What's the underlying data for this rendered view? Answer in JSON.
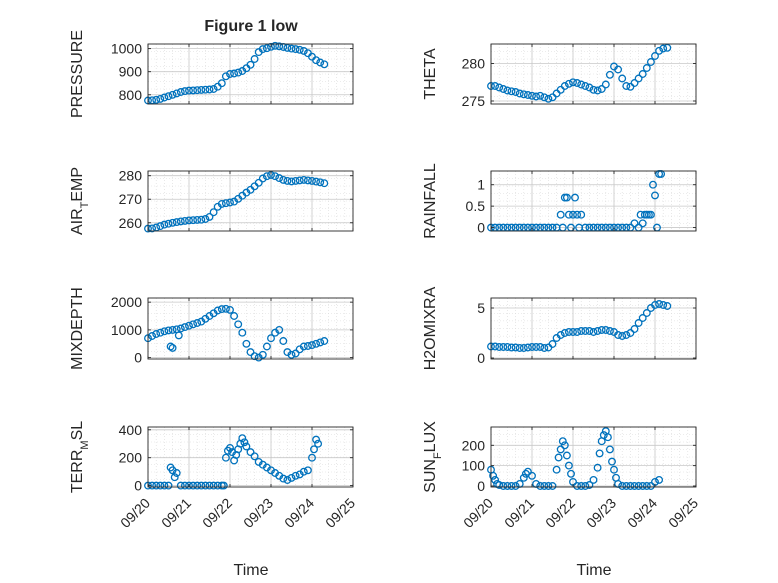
{
  "figure": {
    "title": "Figure 1 low",
    "xlabel": "Time"
  },
  "chart_data": [
    {
      "id": "pressure",
      "type": "scatter",
      "ylabel": "PRESSURE",
      "ylabel_sub": "",
      "ylabel_tail": "",
      "xlim": [
        0,
        5
      ],
      "ylim": [
        760,
        1020
      ],
      "yticks": [
        800,
        900,
        1000
      ],
      "xticks": [],
      "marker_color": "#0072bd",
      "grid": true,
      "x": [
        0.0,
        0.1,
        0.2,
        0.3,
        0.4,
        0.5,
        0.6,
        0.7,
        0.8,
        0.9,
        1.0,
        1.1,
        1.2,
        1.3,
        1.4,
        1.5,
        1.6,
        1.7,
        1.8,
        1.9,
        2.0,
        2.1,
        2.2,
        2.3,
        2.4,
        2.5,
        2.6,
        2.7,
        2.8,
        2.9,
        3.0,
        3.1,
        3.2,
        3.3,
        3.4,
        3.5,
        3.6,
        3.7,
        3.8,
        3.9,
        4.0,
        4.1,
        4.2,
        4.3
      ],
      "y": [
        775,
        776,
        778,
        782,
        788,
        794,
        800,
        806,
        812,
        816,
        818,
        819,
        820,
        821,
        822,
        823,
        825,
        835,
        850,
        880,
        890,
        892,
        896,
        903,
        915,
        930,
        955,
        985,
        998,
        1002,
        1008,
        1012,
        1010,
        1007,
        1003,
        1000,
        998,
        995,
        990,
        980,
        965,
        950,
        940,
        932
      ]
    },
    {
      "id": "theta",
      "type": "scatter",
      "ylabel": "THETA",
      "ylabel_sub": "",
      "ylabel_tail": "",
      "xlim": [
        0,
        5
      ],
      "ylim": [
        274.6,
        282.6
      ],
      "yticks": [
        275,
        280
      ],
      "xticks": [],
      "marker_color": "#0072bd",
      "grid": true,
      "x": [
        0.0,
        0.1,
        0.2,
        0.3,
        0.4,
        0.5,
        0.6,
        0.7,
        0.8,
        0.9,
        1.0,
        1.1,
        1.2,
        1.3,
        1.4,
        1.5,
        1.6,
        1.7,
        1.8,
        1.9,
        2.0,
        2.1,
        2.2,
        2.3,
        2.4,
        2.5,
        2.6,
        2.7,
        2.8,
        2.9,
        3.0,
        3.1,
        3.2,
        3.3,
        3.4,
        3.5,
        3.6,
        3.7,
        3.8,
        3.9,
        4.0,
        4.1,
        4.2,
        4.3
      ],
      "y": [
        277.0,
        277.0,
        276.8,
        276.6,
        276.4,
        276.3,
        276.2,
        276.0,
        275.9,
        275.8,
        275.7,
        275.6,
        275.7,
        275.5,
        275.3,
        275.5,
        276.0,
        276.5,
        277.0,
        277.3,
        277.5,
        277.4,
        277.2,
        277.0,
        276.8,
        276.5,
        276.4,
        276.6,
        277.2,
        278.5,
        279.6,
        279.2,
        278.0,
        277.0,
        276.9,
        277.4,
        278.0,
        278.6,
        279.4,
        280.2,
        281.0,
        281.7,
        282.0,
        282.1
      ]
    },
    {
      "id": "air_temp",
      "type": "scatter",
      "ylabel": "AIR",
      "ylabel_sub": "T",
      "ylabel_tail": "EMP",
      "xlim": [
        0,
        5
      ],
      "ylim": [
        256.5,
        282
      ],
      "yticks": [
        260,
        270,
        280
      ],
      "xticks": [],
      "marker_color": "#0072bd",
      "grid": true,
      "x": [
        0.0,
        0.1,
        0.2,
        0.3,
        0.4,
        0.5,
        0.6,
        0.7,
        0.8,
        0.9,
        1.0,
        1.1,
        1.2,
        1.3,
        1.4,
        1.5,
        1.6,
        1.7,
        1.8,
        1.9,
        2.0,
        2.1,
        2.2,
        2.3,
        2.4,
        2.5,
        2.6,
        2.7,
        2.8,
        2.9,
        3.0,
        3.1,
        3.2,
        3.3,
        3.4,
        3.5,
        3.6,
        3.7,
        3.8,
        3.9,
        4.0,
        4.1,
        4.2,
        4.3
      ],
      "y": [
        257.5,
        257.6,
        258.0,
        258.6,
        259.2,
        259.6,
        260.0,
        260.3,
        260.6,
        260.8,
        261.0,
        261.1,
        261.2,
        261.3,
        261.6,
        262.5,
        264.5,
        266.8,
        268.0,
        268.3,
        268.6,
        269.0,
        270.2,
        271.5,
        272.8,
        274.0,
        275.5,
        277.0,
        278.8,
        279.8,
        280.3,
        279.8,
        279.0,
        278.2,
        277.8,
        277.6,
        277.8,
        278.0,
        278.2,
        278.0,
        277.8,
        277.5,
        277.2,
        276.8
      ]
    },
    {
      "id": "rainfall",
      "type": "scatter",
      "ylabel": "RAINFALL",
      "ylabel_sub": "",
      "ylabel_tail": "",
      "xlim": [
        0,
        5
      ],
      "ylim": [
        -0.08,
        1.32
      ],
      "yticks": [
        0,
        0.5,
        1
      ],
      "ytick_labels": [
        "0",
        "0.5",
        "1"
      ],
      "xticks": [],
      "marker_color": "#0072bd",
      "grid": true,
      "x": [
        0.0,
        0.1,
        0.2,
        0.3,
        0.4,
        0.5,
        0.6,
        0.7,
        0.8,
        0.9,
        1.0,
        1.1,
        1.2,
        1.3,
        1.4,
        1.5,
        1.6,
        1.7,
        1.75,
        1.8,
        1.85,
        1.9,
        1.95,
        2.0,
        2.05,
        2.1,
        2.15,
        2.2,
        2.3,
        2.4,
        2.5,
        2.6,
        2.7,
        2.8,
        2.9,
        3.0,
        3.1,
        3.2,
        3.3,
        3.4,
        3.5,
        3.6,
        3.65,
        3.7,
        3.75,
        3.8,
        3.85,
        3.9,
        3.95,
        4.0,
        4.05,
        4.1,
        4.15
      ],
      "y": [
        0,
        0,
        0,
        0,
        0,
        0,
        0,
        0,
        0,
        0,
        0,
        0,
        0,
        0,
        0,
        0,
        0,
        0.3,
        0,
        0.7,
        0.7,
        0.3,
        0,
        0.3,
        0.7,
        0.3,
        0,
        0.3,
        0,
        0,
        0,
        0,
        0,
        0,
        0,
        0,
        0,
        0,
        0,
        0,
        0.1,
        0,
        0.3,
        0.1,
        0.3,
        0.3,
        0.3,
        0.3,
        1.0,
        0.75,
        0,
        1.25,
        1.25
      ]
    },
    {
      "id": "mixdepth",
      "type": "scatter",
      "ylabel": "MIXDEPTH",
      "ylabel_sub": "",
      "ylabel_tail": "",
      "xlim": [
        0,
        5
      ],
      "ylim": [
        -50,
        2150
      ],
      "yticks": [
        0,
        1000,
        2000
      ],
      "xticks": [],
      "marker_color": "#0072bd",
      "grid": true,
      "x": [
        0.0,
        0.1,
        0.2,
        0.3,
        0.4,
        0.5,
        0.6,
        0.7,
        0.8,
        0.9,
        1.0,
        1.1,
        1.2,
        1.3,
        1.4,
        1.5,
        1.6,
        1.7,
        1.8,
        1.9,
        2.0,
        2.1,
        2.2,
        2.3,
        2.4,
        2.5,
        2.6,
        2.7,
        2.8,
        2.9,
        3.0,
        3.1,
        3.2,
        3.3,
        3.4,
        3.5,
        3.6,
        3.7,
        3.8,
        3.9,
        4.0,
        4.1,
        4.2,
        4.3,
        0.55,
        0.6,
        0.75
      ],
      "y": [
        700,
        780,
        850,
        900,
        950,
        980,
        1000,
        1020,
        1050,
        1100,
        1150,
        1200,
        1250,
        1300,
        1400,
        1500,
        1600,
        1700,
        1750,
        1760,
        1720,
        1500,
        1200,
        900,
        500,
        200,
        50,
        0,
        100,
        400,
        700,
        900,
        1000,
        600,
        200,
        100,
        150,
        300,
        400,
        420,
        450,
        500,
        550,
        600,
        400,
        350,
        800
      ]
    },
    {
      "id": "h2omixra",
      "type": "scatter",
      "ylabel": "H2OMIXRA",
      "ylabel_sub": "",
      "ylabel_tail": "",
      "xlim": [
        0,
        5
      ],
      "ylim": [
        -0.1,
        6.0
      ],
      "yticks": [
        0,
        5
      ],
      "xticks": [],
      "marker_color": "#0072bd",
      "grid": true,
      "x": [
        0.0,
        0.1,
        0.2,
        0.3,
        0.4,
        0.5,
        0.6,
        0.7,
        0.8,
        0.9,
        1.0,
        1.1,
        1.2,
        1.3,
        1.4,
        1.5,
        1.6,
        1.7,
        1.8,
        1.9,
        2.0,
        2.1,
        2.2,
        2.3,
        2.4,
        2.5,
        2.6,
        2.7,
        2.8,
        2.9,
        3.0,
        3.1,
        3.2,
        3.3,
        3.4,
        3.5,
        3.6,
        3.7,
        3.8,
        3.9,
        4.0,
        4.1,
        4.2,
        4.3
      ],
      "y": [
        1.15,
        1.15,
        1.1,
        1.1,
        1.1,
        1.05,
        1.05,
        1.0,
        1.0,
        1.05,
        1.1,
        1.1,
        1.1,
        1.0,
        1.05,
        1.4,
        2.0,
        2.3,
        2.5,
        2.6,
        2.6,
        2.6,
        2.7,
        2.7,
        2.7,
        2.6,
        2.7,
        2.8,
        2.8,
        2.7,
        2.6,
        2.3,
        2.2,
        2.3,
        2.5,
        2.9,
        3.5,
        4.0,
        4.5,
        5.0,
        5.3,
        5.4,
        5.3,
        5.2
      ]
    },
    {
      "id": "terr_msl",
      "type": "scatter",
      "ylabel": "TERR",
      "ylabel_sub": "M",
      "ylabel_tail": "SL",
      "xlim": [
        0,
        5
      ],
      "ylim": [
        -10,
        420
      ],
      "yticks": [
        0,
        200,
        400
      ],
      "xticks": [
        0,
        1,
        2,
        3,
        4,
        5
      ],
      "xtick_labels": [
        "09/20",
        "09/21",
        "09/22",
        "09/23",
        "09/24",
        "09/25"
      ],
      "marker_color": "#0072bd",
      "grid": true,
      "x": [
        0.0,
        0.1,
        0.2,
        0.3,
        0.4,
        0.5,
        0.55,
        0.6,
        0.65,
        0.7,
        0.8,
        0.9,
        1.0,
        1.1,
        1.2,
        1.3,
        1.4,
        1.5,
        1.6,
        1.7,
        1.8,
        1.85,
        1.9,
        1.95,
        2.0,
        2.05,
        2.1,
        2.15,
        2.2,
        2.25,
        2.3,
        2.35,
        2.4,
        2.5,
        2.6,
        2.7,
        2.8,
        2.9,
        3.0,
        3.1,
        3.2,
        3.3,
        3.4,
        3.5,
        3.6,
        3.7,
        3.8,
        3.9,
        4.0,
        4.05,
        4.1,
        4.15
      ],
      "y": [
        0,
        0,
        0,
        0,
        0,
        0,
        130,
        110,
        60,
        90,
        0,
        0,
        0,
        0,
        0,
        0,
        0,
        0,
        0,
        0,
        0,
        0,
        200,
        250,
        270,
        240,
        180,
        220,
        260,
        300,
        340,
        310,
        280,
        240,
        210,
        170,
        150,
        130,
        110,
        90,
        70,
        50,
        40,
        55,
        70,
        80,
        100,
        110,
        200,
        260,
        330,
        300
      ]
    },
    {
      "id": "sun_flux",
      "type": "scatter",
      "ylabel": "SUN",
      "ylabel_sub": "F",
      "ylabel_tail": "LUX",
      "xlim": [
        0,
        5
      ],
      "ylim": [
        -5,
        290
      ],
      "yticks": [
        0,
        100,
        200
      ],
      "xticks": [
        0,
        1,
        2,
        3,
        4,
        5
      ],
      "xtick_labels": [
        "09/20",
        "09/21",
        "09/22",
        "09/23",
        "09/24",
        "09/25"
      ],
      "marker_color": "#0072bd",
      "grid": true,
      "x": [
        0.0,
        0.05,
        0.1,
        0.15,
        0.2,
        0.3,
        0.4,
        0.5,
        0.6,
        0.7,
        0.8,
        0.85,
        0.9,
        1.0,
        1.1,
        1.2,
        1.3,
        1.4,
        1.5,
        1.6,
        1.65,
        1.7,
        1.75,
        1.8,
        1.85,
        1.9,
        1.95,
        2.0,
        2.1,
        2.2,
        2.3,
        2.4,
        2.5,
        2.6,
        2.65,
        2.7,
        2.75,
        2.8,
        2.85,
        2.9,
        2.95,
        3.0,
        3.05,
        3.1,
        3.2,
        3.3,
        3.4,
        3.5,
        3.6,
        3.7,
        3.8,
        3.9,
        4.0,
        4.1
      ],
      "y": [
        80,
        50,
        30,
        10,
        5,
        0,
        0,
        0,
        0,
        10,
        40,
        60,
        70,
        50,
        10,
        0,
        0,
        0,
        0,
        80,
        140,
        180,
        220,
        200,
        150,
        100,
        60,
        20,
        0,
        0,
        0,
        5,
        30,
        90,
        160,
        220,
        250,
        270,
        240,
        180,
        120,
        80,
        40,
        10,
        0,
        0,
        0,
        0,
        0,
        0,
        0,
        0,
        20,
        30
      ]
    }
  ]
}
